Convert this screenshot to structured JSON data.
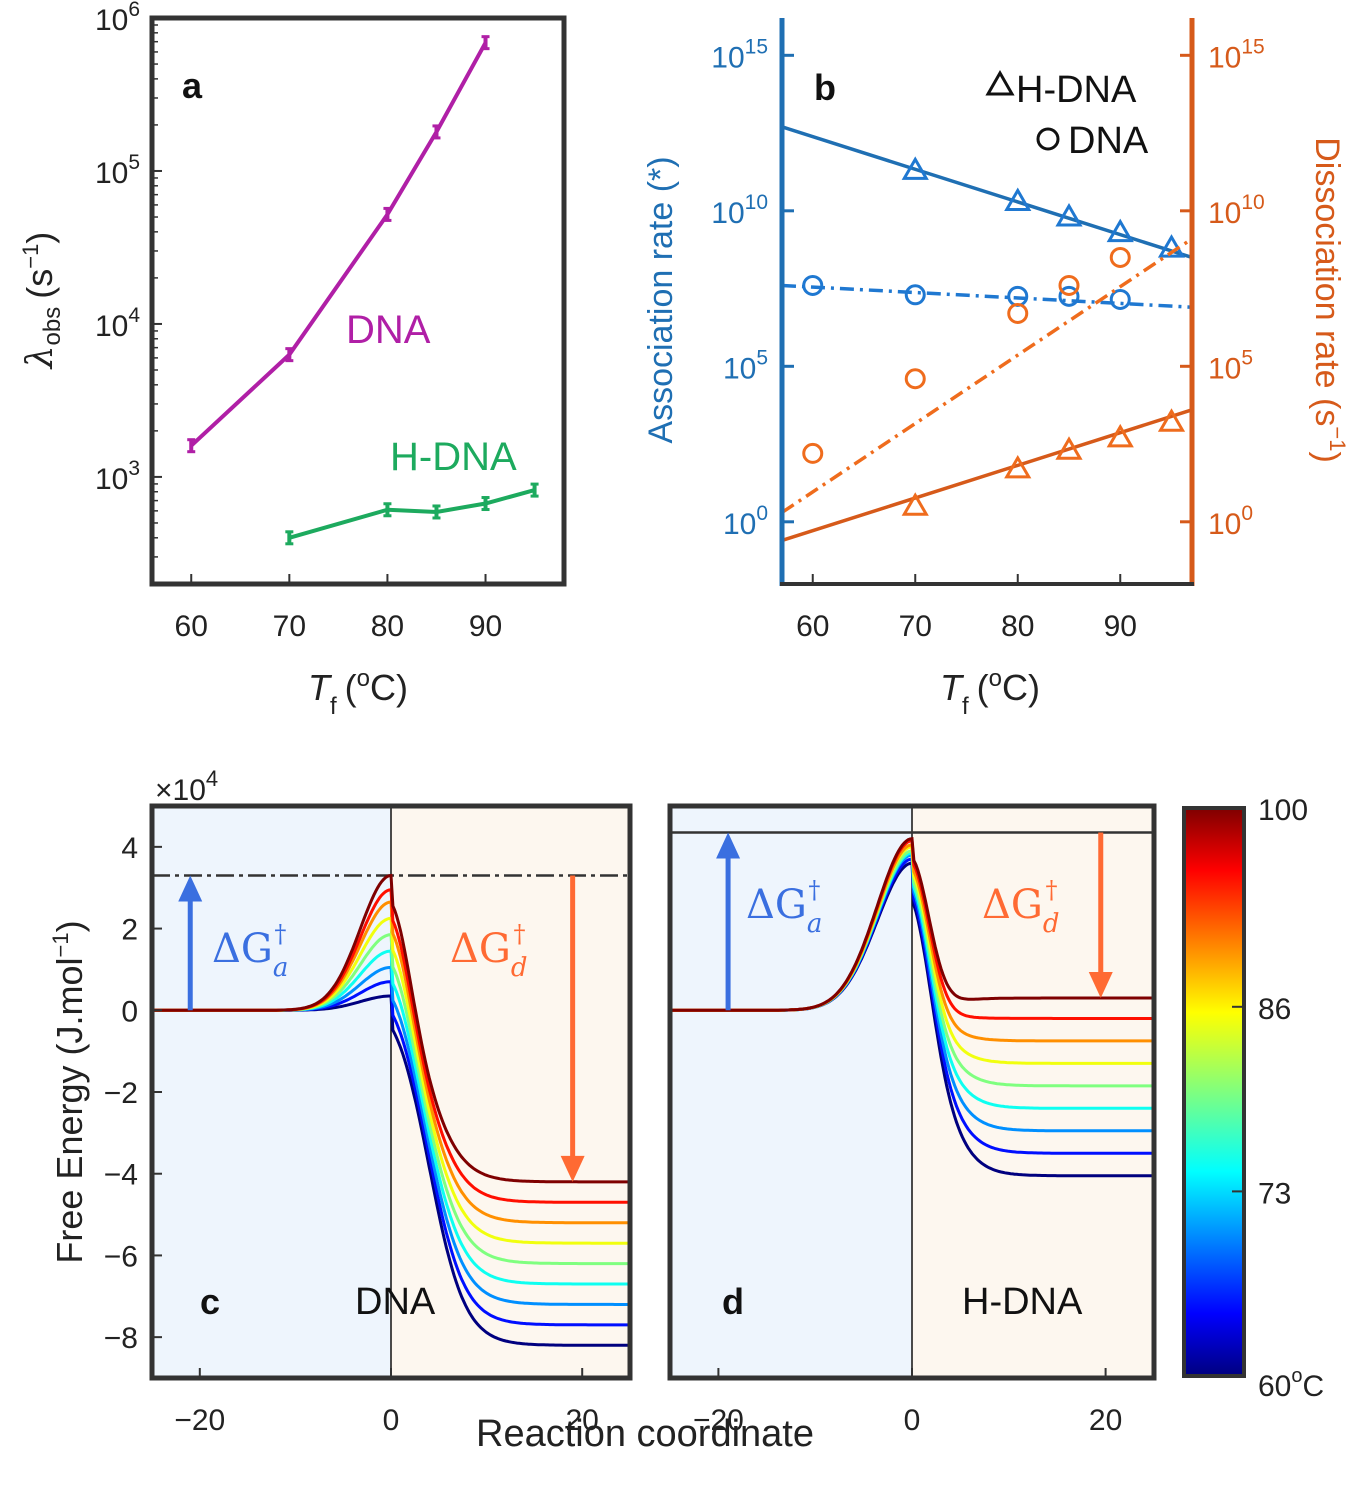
{
  "colors": {
    "dna_a": "#b01fa6",
    "hdna_a": "#1daa5e",
    "assoc": "#1f6fb3",
    "dissoc": "#d65a1a",
    "assoc_marker": "#1f78d1",
    "dissoc_marker": "#ef6c1d",
    "arrow_a": "#3a6fe0",
    "arrow_d": "#ff6a33",
    "bg_left": "#eef5fd",
    "bg_right": "#fdf7ef"
  },
  "panels": {
    "a": {
      "letter": "a",
      "label_dna": "DNA",
      "label_hdna": "H-DNA"
    },
    "b": {
      "letter": "b",
      "legend_hdna": "H-DNA",
      "legend_dna": "DNA"
    },
    "c": {
      "letter": "c",
      "name": "DNA",
      "dG_a": "ΔG",
      "dG_d": "ΔG",
      "sub_a": "a",
      "sub_d": "d",
      "dagger": "†"
    },
    "d": {
      "letter": "d",
      "name": "H-DNA",
      "dG_a": "ΔG",
      "dG_d": "ΔG",
      "sub_a": "a",
      "sub_d": "d",
      "dagger": "†"
    }
  },
  "axes": {
    "a_ylabel_main": "λ",
    "a_ylabel_sub": "obs",
    "a_ylabel_unit": "(s",
    "a_ylabel_exp": "−1",
    "a_ylabel_close": ")",
    "tf_T": "T",
    "tf_sub": "f",
    "tf_unit_open": "(",
    "tf_unit_sup": "o",
    "tf_unit_close": "C)",
    "b_ylabel_left": "Association rate (*)",
    "b_ylabel_right_main": "Dissociation rate (s",
    "b_ylabel_right_exp": "−1",
    "b_ylabel_right_close": ")",
    "cd_ylabel_main": "Free Energy (J.mol",
    "cd_ylabel_exp": "−1",
    "cd_ylabel_close": ")",
    "cd_xlabel": "Reaction coordinate",
    "cd_scale_base": "×10",
    "cd_scale_exp": "4"
  },
  "colorbar": {
    "ticks": [
      "100",
      "86",
      "73"
    ],
    "bottom_label": "60",
    "bottom_sup": "o",
    "bottom_unit": "C",
    "range": [
      60,
      100
    ]
  },
  "chart_data": [
    {
      "type": "line",
      "panel": "a",
      "xlabel": "Tf (oC)",
      "ylabel": "λobs (s−1)",
      "yscale": "log",
      "xlim": [
        56,
        98
      ],
      "ylim_exp": [
        2.3,
        6
      ],
      "xticks": [
        60,
        70,
        80,
        90
      ],
      "xtick_labels": [
        "60",
        "70",
        "80",
        "90"
      ],
      "yticks_exp": [
        3,
        4,
        5,
        6
      ],
      "ytick_base": "10",
      "ytick_exps": [
        "3",
        "4",
        "5",
        "6"
      ],
      "series": [
        {
          "name": "DNA",
          "x": [
            60,
            70,
            80,
            85,
            90
          ],
          "y": [
            1600,
            6300,
            52000,
            180000,
            690000
          ]
        },
        {
          "name": "H-DNA",
          "x": [
            70,
            80,
            85,
            90,
            95
          ],
          "y": [
            400,
            610,
            590,
            670,
            820
          ]
        }
      ]
    },
    {
      "type": "scatter",
      "panel": "b",
      "xlabel": "Tf (oC)",
      "ylabel_left": "Association rate (*)",
      "ylabel_right": "Dissociation rate (s−1)",
      "yscale": "log",
      "xlim": [
        57,
        97
      ],
      "ylim_exp": [
        -2,
        16.2
      ],
      "xticks": [
        60,
        70,
        80,
        90
      ],
      "xtick_labels": [
        "60",
        "70",
        "80",
        "90"
      ],
      "yticks_exp": [
        0,
        5,
        10,
        15
      ],
      "ytick_base": "10",
      "ytick_exps": [
        "0",
        "5",
        "10",
        "15"
      ],
      "legend": [
        "H-DNA",
        "DNA"
      ],
      "series": [
        {
          "name": "H-DNA association",
          "marker": "triangle",
          "fit": "solid",
          "x": [
            70,
            80,
            85,
            90,
            95
          ],
          "log10_y": [
            11.3,
            10.3,
            9.8,
            9.3,
            8.8
          ],
          "fit_log10": [
            [
              57,
              12.7
            ],
            [
              97,
              8.5
            ]
          ]
        },
        {
          "name": "DNA association",
          "marker": "circle",
          "fit": "dashdot",
          "x": [
            60,
            70,
            80,
            85,
            90
          ],
          "log10_y": [
            7.6,
            7.3,
            7.25,
            7.25,
            7.15
          ],
          "fit_log10": [
            [
              57,
              7.6
            ],
            [
              97,
              6.9
            ]
          ]
        },
        {
          "name": "DNA dissociation",
          "marker": "circle",
          "fit": "dashdot",
          "x": [
            60,
            70,
            80,
            85,
            90
          ],
          "log10_y": [
            2.2,
            4.6,
            6.7,
            7.6,
            8.5
          ],
          "fit_log10": [
            [
              57,
              0.3
            ],
            [
              97,
              9.1
            ]
          ]
        },
        {
          "name": "H-DNA dissociation",
          "marker": "triangle",
          "fit": "solid",
          "x": [
            70,
            80,
            85,
            90,
            95
          ],
          "log10_y": [
            0.5,
            1.7,
            2.3,
            2.7,
            3.2
          ],
          "fit_log10": [
            [
              57,
              -0.6
            ],
            [
              97,
              3.6
            ]
          ]
        }
      ]
    },
    {
      "type": "line",
      "panel": "c",
      "title": "DNA",
      "xlabel": "Reaction coordinate",
      "ylabel": "Free Energy (J.mol−1)",
      "y_multiplier": "×10^4",
      "xlim": [
        -25,
        25
      ],
      "ylim": [
        -9,
        5
      ],
      "xticks": [
        -20,
        0,
        20
      ],
      "xtick_labels": [
        "−20",
        "0",
        "20"
      ],
      "yticks": [
        4,
        2,
        0,
        -2,
        -4,
        -6,
        -8
      ],
      "ytick_labels": [
        "4",
        "2",
        "0",
        "−2",
        "−4",
        "−6",
        "−8"
      ],
      "temperatures_C": [
        60,
        65,
        70,
        75,
        80,
        85,
        90,
        95,
        100
      ],
      "barrier_peak": [
        0.35,
        0.7,
        1.05,
        1.45,
        1.85,
        2.25,
        2.65,
        2.95,
        3.3
      ],
      "final_level": [
        -8.2,
        -7.7,
        -7.2,
        -6.7,
        -6.2,
        -5.7,
        -5.2,
        -4.7,
        -4.2
      ],
      "reference_line": 3.3
    },
    {
      "type": "line",
      "panel": "d",
      "title": "H-DNA",
      "xlabel": "Reaction coordinate",
      "xlim": [
        -25,
        25
      ],
      "ylim": [
        -9,
        5
      ],
      "xticks": [
        -20,
        0,
        20
      ],
      "xtick_labels": [
        "−20",
        "0",
        "20"
      ],
      "temperatures_C": [
        60,
        65,
        70,
        75,
        80,
        85,
        90,
        95,
        100
      ],
      "barrier_peak": [
        3.6,
        3.7,
        3.8,
        3.85,
        3.9,
        4.0,
        4.05,
        4.15,
        4.2
      ],
      "final_level": [
        -4.05,
        -3.5,
        -2.95,
        -2.4,
        -1.85,
        -1.3,
        -0.75,
        -0.2,
        0.3
      ],
      "reference_line": 4.35
    }
  ]
}
